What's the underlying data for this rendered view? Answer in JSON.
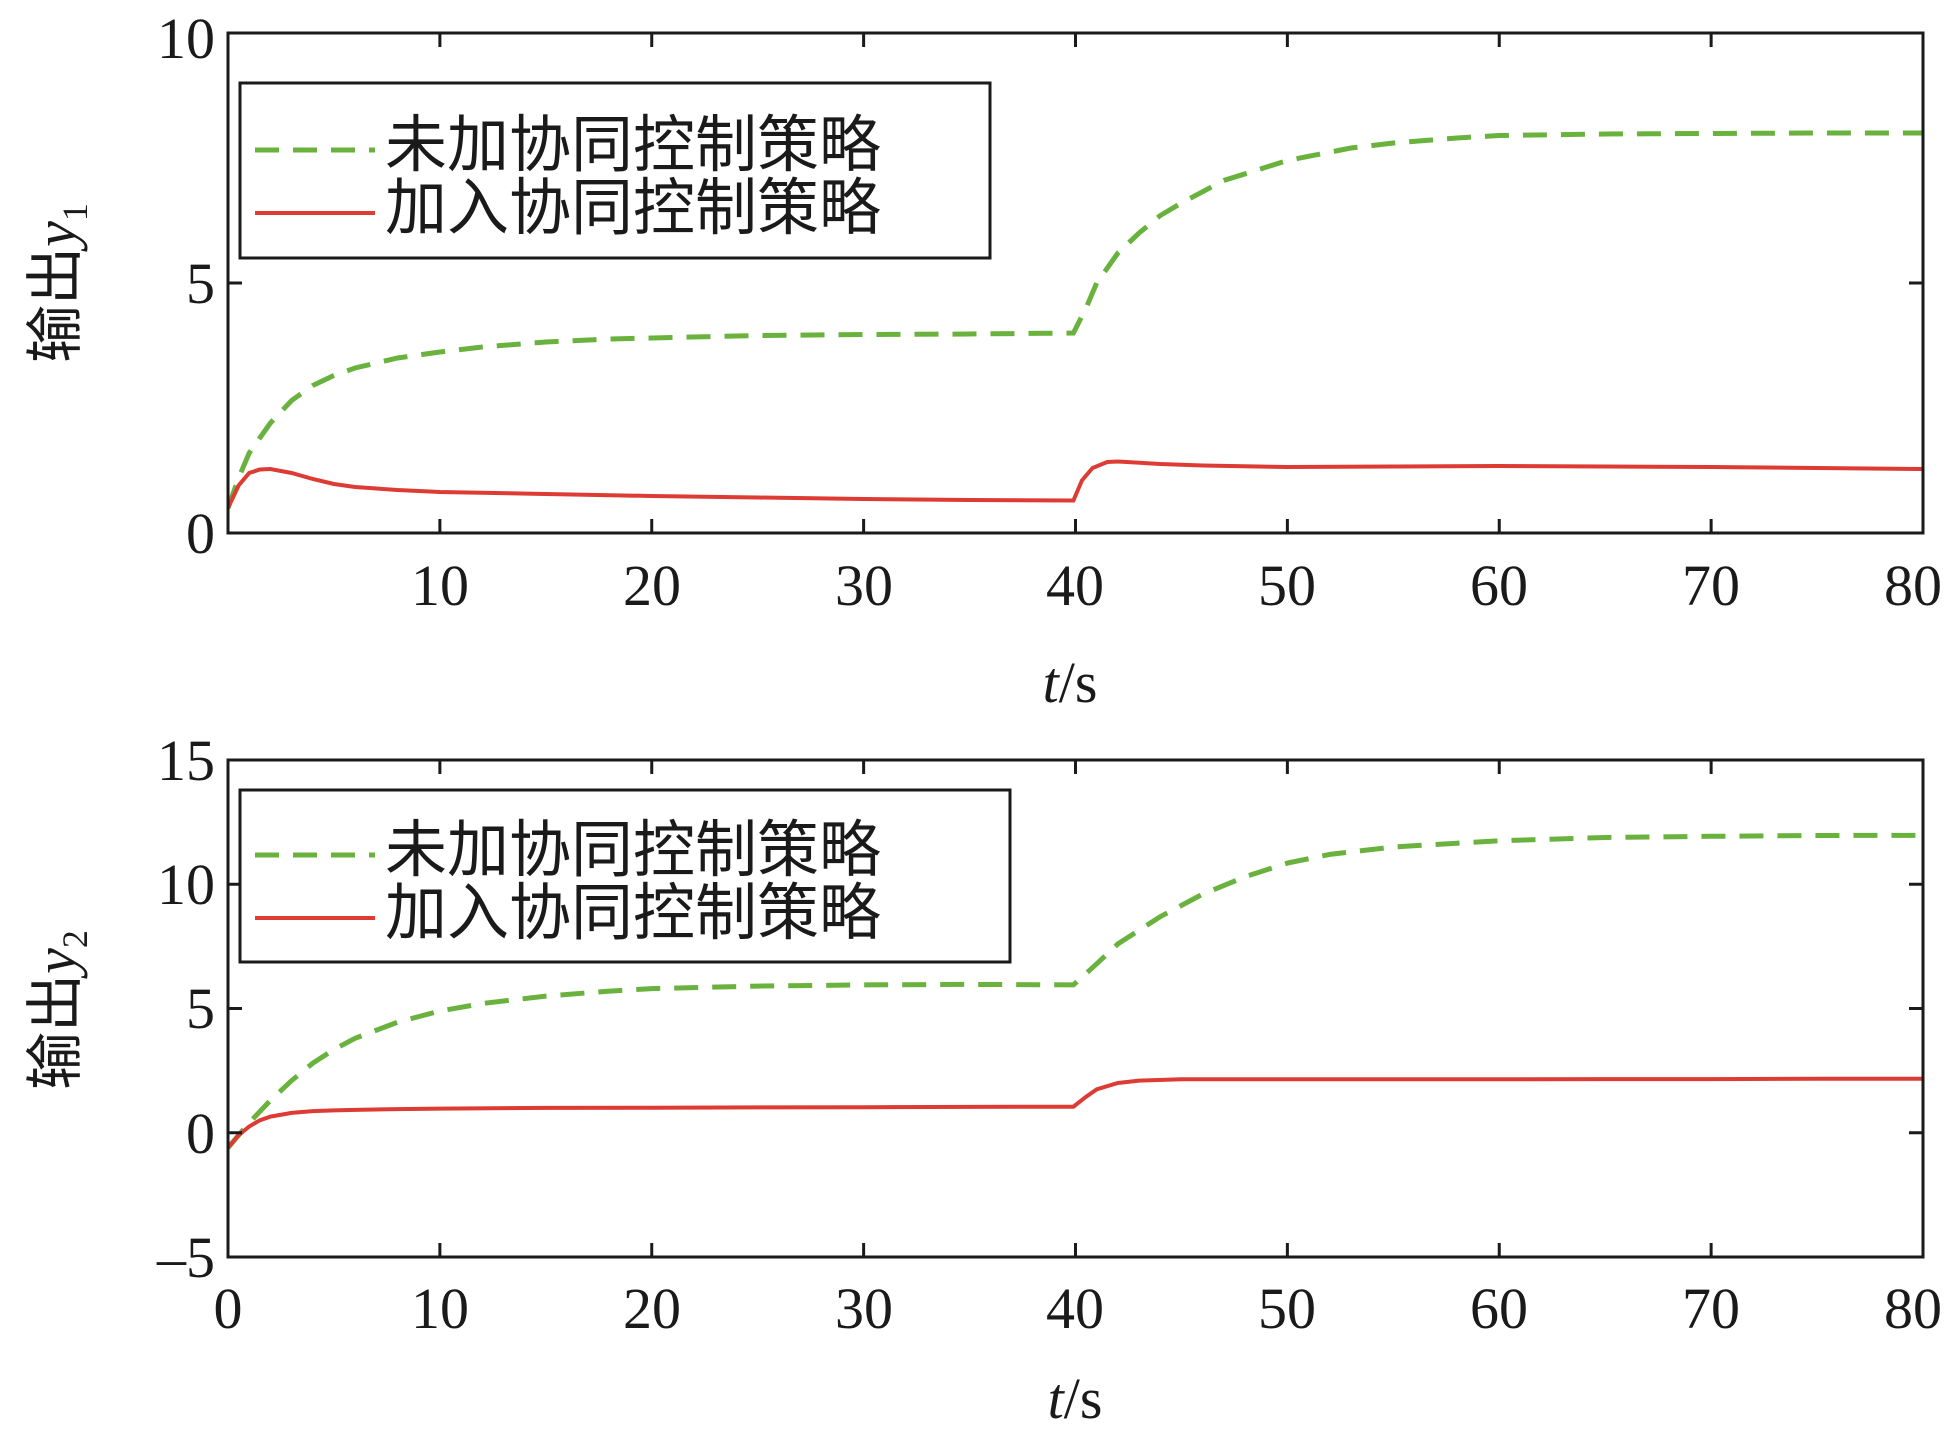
{
  "chart_data": [
    {
      "type": "line",
      "xlabel_var": "t",
      "xlabel_unit": "/s",
      "ylabel_text": "输出",
      "ylabel_var": "y",
      "ylabel_sub": "1",
      "xlim": [
        0,
        80
      ],
      "ylim": [
        0,
        10
      ],
      "xticks": [
        10,
        20,
        30,
        40,
        50,
        60,
        70,
        80
      ],
      "yticks": [
        0,
        5,
        10
      ],
      "xtick_labels": [
        "10",
        "20",
        "30",
        "40",
        "50",
        "60",
        "70",
        "80"
      ],
      "ytick_labels": [
        "0",
        "5",
        "10"
      ],
      "grid": false,
      "legend_position": "top-left",
      "series": [
        {
          "name": "未加协同控制策略",
          "color": "#6ab23e",
          "style": "dashed",
          "x": [
            0,
            0.5,
            1,
            2,
            3,
            4,
            5,
            6,
            8,
            10,
            12,
            15,
            18,
            20,
            25,
            30,
            35,
            39.9,
            40.5,
            41,
            42,
            43,
            44,
            45,
            47,
            50,
            53,
            55,
            58,
            60,
            65,
            70,
            75,
            80
          ],
          "y": [
            0.5,
            1.1,
            1.6,
            2.2,
            2.65,
            2.95,
            3.15,
            3.3,
            3.5,
            3.62,
            3.72,
            3.82,
            3.88,
            3.9,
            3.95,
            3.97,
            3.98,
            4.0,
            4.5,
            5.0,
            5.6,
            6.0,
            6.35,
            6.6,
            7.05,
            7.45,
            7.7,
            7.8,
            7.9,
            7.95,
            7.98,
            7.99,
            8.0,
            8.0
          ]
        },
        {
          "name": "加入协同控制策略",
          "color": "#dd3b34",
          "style": "solid",
          "x": [
            0,
            0.5,
            1,
            1.5,
            2,
            3,
            4,
            5,
            6,
            8,
            10,
            15,
            20,
            25,
            30,
            35,
            39.9,
            40.3,
            40.8,
            41.5,
            42,
            44,
            46,
            50,
            55,
            60,
            65,
            70,
            75,
            80
          ],
          "y": [
            0.5,
            0.95,
            1.2,
            1.27,
            1.28,
            1.2,
            1.08,
            0.98,
            0.92,
            0.86,
            0.82,
            0.78,
            0.74,
            0.71,
            0.68,
            0.66,
            0.65,
            1.05,
            1.3,
            1.42,
            1.43,
            1.38,
            1.35,
            1.32,
            1.33,
            1.34,
            1.33,
            1.32,
            1.3,
            1.28
          ]
        }
      ]
    },
    {
      "type": "line",
      "xlabel_var": "t",
      "xlabel_unit": "/s",
      "ylabel_text": "输出",
      "ylabel_var": "y",
      "ylabel_sub": "2",
      "xlim": [
        0,
        80
      ],
      "ylim": [
        -5,
        15
      ],
      "xticks": [
        0,
        10,
        20,
        30,
        40,
        50,
        60,
        70,
        80
      ],
      "yticks": [
        -5,
        0,
        5,
        10,
        15
      ],
      "xtick_labels": [
        "0",
        "10",
        "20",
        "30",
        "40",
        "50",
        "60",
        "70",
        "80"
      ],
      "ytick_labels": [
        "–5",
        "0",
        "5",
        "10",
        "15"
      ],
      "grid": false,
      "legend_position": "top-left",
      "series": [
        {
          "name": "未加协同控制策略",
          "color": "#6ab23e",
          "style": "dashed",
          "x": [
            0,
            1,
            2,
            3,
            4,
            5,
            6,
            8,
            10,
            12,
            15,
            18,
            20,
            25,
            30,
            35,
            39.9,
            41,
            42,
            44,
            46,
            48,
            50,
            52,
            55,
            58,
            60,
            65,
            70,
            75,
            80
          ],
          "y": [
            -0.6,
            0.4,
            1.3,
            2.1,
            2.8,
            3.35,
            3.8,
            4.45,
            4.9,
            5.2,
            5.5,
            5.7,
            5.8,
            5.9,
            5.95,
            5.97,
            5.95,
            6.8,
            7.6,
            8.7,
            9.6,
            10.3,
            10.85,
            11.2,
            11.5,
            11.65,
            11.75,
            11.88,
            11.93,
            11.96,
            11.97
          ]
        },
        {
          "name": "加入协同控制策略",
          "color": "#dd3b34",
          "style": "solid",
          "x": [
            0,
            0.5,
            1,
            1.5,
            2,
            3,
            4,
            5,
            6,
            8,
            10,
            15,
            20,
            25,
            30,
            35,
            39.9,
            40.5,
            41,
            42,
            43,
            45,
            50,
            55,
            60,
            65,
            70,
            75,
            80
          ],
          "y": [
            -0.6,
            -0.1,
            0.25,
            0.5,
            0.65,
            0.8,
            0.87,
            0.9,
            0.92,
            0.95,
            0.97,
            1.0,
            1.01,
            1.02,
            1.03,
            1.04,
            1.05,
            1.45,
            1.75,
            2.0,
            2.1,
            2.15,
            2.15,
            2.15,
            2.15,
            2.16,
            2.16,
            2.17,
            2.17
          ]
        }
      ]
    }
  ]
}
